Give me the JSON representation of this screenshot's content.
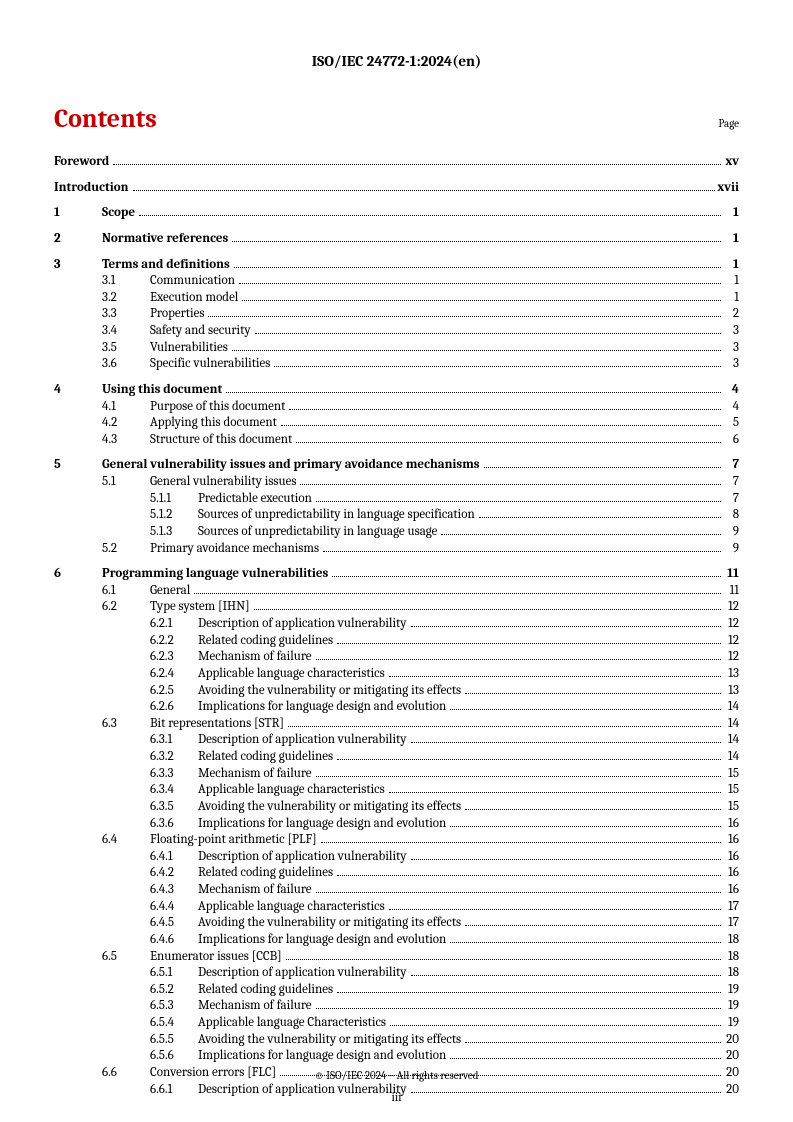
{
  "header": "ISO/IEC 24772-1:2024(en)",
  "contents_title": "Contents",
  "page_label": "Page",
  "footer": "© ISO/IEC 2024 – All rights reserved",
  "page_number": "iii",
  "toc": [
    {
      "level": 0,
      "num": "",
      "text": "Foreword",
      "page": "xv",
      "nonum": true
    },
    {
      "level": 0,
      "num": "",
      "text": "Introduction",
      "page": "xvii",
      "nonum": true
    },
    {
      "level": 0,
      "num": "1",
      "text": "Scope",
      "page": "1"
    },
    {
      "level": 0,
      "num": "2",
      "text": "Normative references",
      "page": "1"
    },
    {
      "level": 0,
      "num": "3",
      "text": "Terms and definitions",
      "page": "1"
    },
    {
      "level": 1,
      "num": "3.1",
      "text": "Communication",
      "page": "1"
    },
    {
      "level": 1,
      "num": "3.2",
      "text": "Execution model",
      "page": "1"
    },
    {
      "level": 1,
      "num": "3.3",
      "text": "Properties",
      "page": "2"
    },
    {
      "level": 1,
      "num": "3.4",
      "text": "Safety and security",
      "page": "3"
    },
    {
      "level": 1,
      "num": "3.5",
      "text": "Vulnerabilities",
      "page": "3"
    },
    {
      "level": 1,
      "num": "3.6",
      "text": "Specific vulnerabilities",
      "page": "3"
    },
    {
      "level": 0,
      "num": "4",
      "text": "Using this document",
      "page": "4"
    },
    {
      "level": 1,
      "num": "4.1",
      "text": "Purpose of this document",
      "page": "4"
    },
    {
      "level": 1,
      "num": "4.2",
      "text": "Applying this document",
      "page": "5"
    },
    {
      "level": 1,
      "num": "4.3",
      "text": "Structure of this document",
      "page": "6"
    },
    {
      "level": 0,
      "num": "5",
      "text": "General vulnerability issues and primary avoidance mechanisms",
      "page": "7"
    },
    {
      "level": 1,
      "num": "5.1",
      "text": "General vulnerability issues",
      "page": "7"
    },
    {
      "level": 2,
      "num": "5.1.1",
      "text": "Predictable execution",
      "page": "7"
    },
    {
      "level": 2,
      "num": "5.1.2",
      "text": "Sources of unpredictability in language specification",
      "page": "8"
    },
    {
      "level": 2,
      "num": "5.1.3",
      "text": "Sources of unpredictability in language usage",
      "page": "9"
    },
    {
      "level": 1,
      "num": "5.2",
      "text": "Primary avoidance mechanisms",
      "page": "9"
    },
    {
      "level": 0,
      "num": "6",
      "text": "Programming language vulnerabilities",
      "page": "11"
    },
    {
      "level": 1,
      "num": "6.1",
      "text": "General",
      "page": "11"
    },
    {
      "level": 1,
      "num": "6.2",
      "text": "Type system [IHN]",
      "page": "12"
    },
    {
      "level": 2,
      "num": "6.2.1",
      "text": "Description of application vulnerability",
      "page": "12"
    },
    {
      "level": 2,
      "num": "6.2.2",
      "text": "Related coding guidelines",
      "page": "12"
    },
    {
      "level": 2,
      "num": "6.2.3",
      "text": "Mechanism of failure",
      "page": "12"
    },
    {
      "level": 2,
      "num": "6.2.4",
      "text": "Applicable language characteristics",
      "page": "13"
    },
    {
      "level": 2,
      "num": "6.2.5",
      "text": "Avoiding the vulnerability or mitigating its effects",
      "page": "13"
    },
    {
      "level": 2,
      "num": "6.2.6",
      "text": "Implications for language design and evolution",
      "page": "14"
    },
    {
      "level": 1,
      "num": "6.3",
      "text": "Bit representations [STR]",
      "page": "14"
    },
    {
      "level": 2,
      "num": "6.3.1",
      "text": "Description of application vulnerability",
      "page": "14"
    },
    {
      "level": 2,
      "num": "6.3.2",
      "text": "Related coding guidelines",
      "page": "14"
    },
    {
      "level": 2,
      "num": "6.3.3",
      "text": "Mechanism of failure",
      "page": "15"
    },
    {
      "level": 2,
      "num": "6.3.4",
      "text": "Applicable language characteristics",
      "page": "15"
    },
    {
      "level": 2,
      "num": "6.3.5",
      "text": "Avoiding the vulnerability or mitigating its effects",
      "page": "15"
    },
    {
      "level": 2,
      "num": "6.3.6",
      "text": "Implications for language design and evolution",
      "page": "16"
    },
    {
      "level": 1,
      "num": "6.4",
      "text": "Floating-point arithmetic [PLF]",
      "page": "16"
    },
    {
      "level": 2,
      "num": "6.4.1",
      "text": "Description of application vulnerability",
      "page": "16"
    },
    {
      "level": 2,
      "num": "6.4.2",
      "text": "Related coding guidelines",
      "page": "16"
    },
    {
      "level": 2,
      "num": "6.4.3",
      "text": "Mechanism of failure",
      "page": "16"
    },
    {
      "level": 2,
      "num": "6.4.4",
      "text": "Applicable language characteristics",
      "page": "17"
    },
    {
      "level": 2,
      "num": "6.4.5",
      "text": "Avoiding the vulnerability or mitigating its effects",
      "page": "17"
    },
    {
      "level": 2,
      "num": "6.4.6",
      "text": "Implications for language design and evolution",
      "page": "18"
    },
    {
      "level": 1,
      "num": "6.5",
      "text": "Enumerator issues [CCB]",
      "page": "18"
    },
    {
      "level": 2,
      "num": "6.5.1",
      "text": "Description of application vulnerability",
      "page": "18"
    },
    {
      "level": 2,
      "num": "6.5.2",
      "text": "Related coding guidelines",
      "page": "19"
    },
    {
      "level": 2,
      "num": "6.5.3",
      "text": "Mechanism of failure",
      "page": "19"
    },
    {
      "level": 2,
      "num": "6.5.4",
      "text": "Applicable language Characteristics",
      "page": "19"
    },
    {
      "level": 2,
      "num": "6.5.5",
      "text": "Avoiding the vulnerability or mitigating its effects",
      "page": "20"
    },
    {
      "level": 2,
      "num": "6.5.6",
      "text": "Implications for language design and evolution",
      "page": "20"
    },
    {
      "level": 1,
      "num": "6.6",
      "text": "Conversion errors [FLC]",
      "page": "20"
    },
    {
      "level": 2,
      "num": "6.6.1",
      "text": "Description of application vulnerability",
      "page": "20"
    }
  ]
}
